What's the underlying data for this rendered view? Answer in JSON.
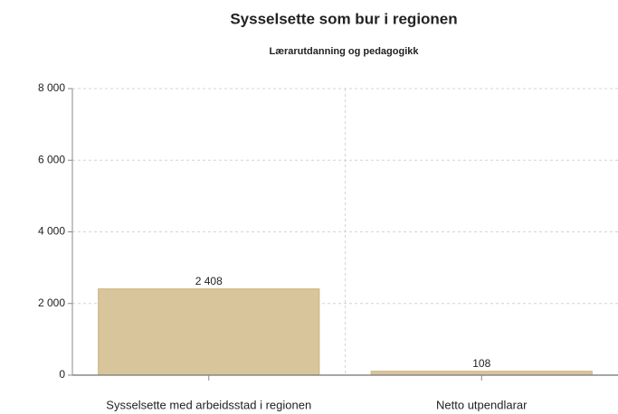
{
  "chart_data": {
    "type": "bar",
    "title": "Sysselsette som bur i regionen",
    "subtitle": "Lærarutdanning og pedagogikk",
    "categories": [
      "Sysselsette med arbeidsstad i regionen",
      "Netto utpendlarar"
    ],
    "values": [
      2408,
      108
    ],
    "value_labels": [
      "2 408",
      "108"
    ],
    "color": "#d9c59b",
    "ylim": [
      0,
      8000
    ],
    "yticks": [
      0,
      {
        "value": 2000,
        "label": "2 000"
      },
      {
        "value": 4000,
        "label": "4 000"
      },
      {
        "value": 6000,
        "label": "6 000"
      },
      {
        "value": 8000,
        "label": "8 000"
      }
    ],
    "grid": true
  }
}
